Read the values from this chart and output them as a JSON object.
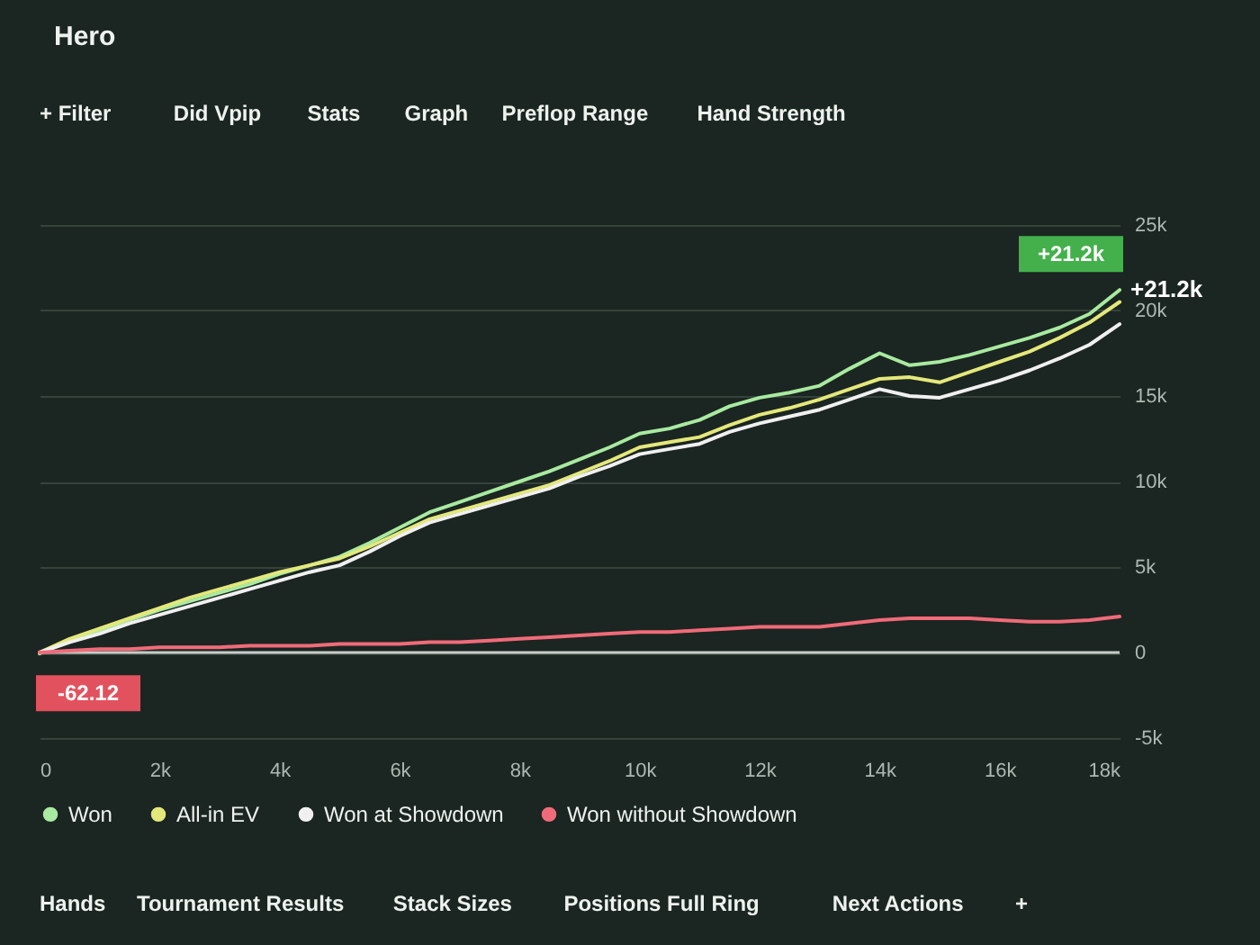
{
  "chart_data": {
    "type": "line",
    "title": "Hero",
    "annotations": [
      "+ Filter",
      "Did Vpip",
      "Stats",
      "Graph",
      "Preflop Range",
      "Hand Strength",
      {
        "text": "+21.2k",
        "x": 18000,
        "y": 21200
      },
      {
        "text": "-62.12",
        "x": 0,
        "y": -62.12
      },
      "Hands",
      "Tournament Results",
      "Stack Sizes",
      "Positions Full Ring",
      "Next Actions",
      "+"
    ],
    "x": [
      0,
      500,
      1000,
      1500,
      2000,
      2500,
      3000,
      3500,
      4000,
      4500,
      5000,
      5500,
      6000,
      6500,
      7000,
      7500,
      8000,
      8500,
      9000,
      9500,
      10000,
      10500,
      11000,
      11500,
      12000,
      12500,
      13000,
      13500,
      14000,
      14500,
      15000,
      15500,
      16000,
      16500,
      17000,
      17500,
      18000
    ],
    "series": [
      {
        "name": "Won",
        "color": "#a8eaa0",
        "values": [
          -62.12,
          700,
          1300,
          1900,
          2500,
          3000,
          3500,
          4000,
          4600,
          5100,
          5600,
          6400,
          7300,
          8200,
          8800,
          9400,
          10000,
          10600,
          11300,
          12000,
          12800,
          13100,
          13600,
          14400,
          14900,
          15200,
          15600,
          16600,
          17500,
          16800,
          17000,
          17400,
          17900,
          18400,
          19000,
          19800,
          21200
        ],
        "value_labels": [
          null,
          null,
          null,
          null,
          null,
          null,
          null,
          null,
          null,
          null,
          null,
          null,
          null,
          null,
          null,
          null,
          null,
          null,
          null,
          null,
          null,
          null,
          null,
          null,
          null,
          null,
          null,
          null,
          null,
          null,
          null,
          null,
          null,
          null,
          null,
          null,
          "+21.2k"
        ]
      },
      {
        "name": "All-in EV",
        "color": "#e4e87a",
        "values": [
          0,
          800,
          1400,
          2000,
          2600,
          3200,
          3700,
          4200,
          4700,
          5100,
          5500,
          6200,
          7000,
          7800,
          8300,
          8800,
          9300,
          9800,
          10500,
          11200,
          12000,
          12300,
          12600,
          13300,
          13900,
          14300,
          14800,
          15400,
          16000,
          16100,
          15800,
          16400,
          17000,
          17600,
          18400,
          19300,
          20500
        ]
      },
      {
        "name": "Won at Showdown",
        "color": "#f0f0f0",
        "values": [
          0,
          600,
          1100,
          1700,
          2200,
          2700,
          3200,
          3700,
          4200,
          4700,
          5100,
          5900,
          6800,
          7600,
          8100,
          8600,
          9100,
          9600,
          10300,
          10900,
          11600,
          11900,
          12200,
          12900,
          13400,
          13800,
          14200,
          14800,
          15400,
          15000,
          14900,
          15400,
          15900,
          16500,
          17200,
          18000,
          19200
        ]
      },
      {
        "name": "Won without Showdown",
        "color": "#f06b7a",
        "values": [
          0,
          100,
          200,
          200,
          300,
          300,
          300,
          400,
          400,
          400,
          500,
          500,
          500,
          600,
          600,
          700,
          800,
          900,
          1000,
          1100,
          1200,
          1200,
          1300,
          1400,
          1500,
          1500,
          1500,
          1700,
          1900,
          2000,
          2000,
          2000,
          1900,
          1800,
          1800,
          1900,
          2100
        ]
      }
    ],
    "xlim": [
      0,
      18000
    ],
    "xticks": [
      0,
      {
        "value": 2000,
        "label": "2k"
      },
      {
        "value": 4000,
        "label": "4k"
      },
      {
        "value": 6000,
        "label": "6k"
      },
      {
        "value": 8000,
        "label": "8k"
      },
      {
        "value": 10000,
        "label": "10k"
      },
      {
        "value": 12000,
        "label": "12k"
      },
      {
        "value": 14000,
        "label": "14k"
      },
      {
        "value": 16000,
        "label": "16k"
      },
      {
        "value": 18000,
        "label": "18k"
      }
    ],
    "ylim": [
      -5000,
      25000
    ],
    "yticks": [
      {
        "value": -5000,
        "label": "-5k"
      },
      0,
      {
        "value": 5000,
        "label": "5k"
      },
      {
        "value": 10000,
        "label": "10k"
      },
      {
        "value": 15000,
        "label": "15k"
      },
      {
        "value": 20000,
        "label": "20k"
      },
      {
        "value": 25000,
        "label": "25k"
      }
    ],
    "ref_lines": [
      {
        "axis": "y",
        "value": 0,
        "color": "#c8ccc8"
      }
    ],
    "grid": "y",
    "legend": "bottom"
  }
}
